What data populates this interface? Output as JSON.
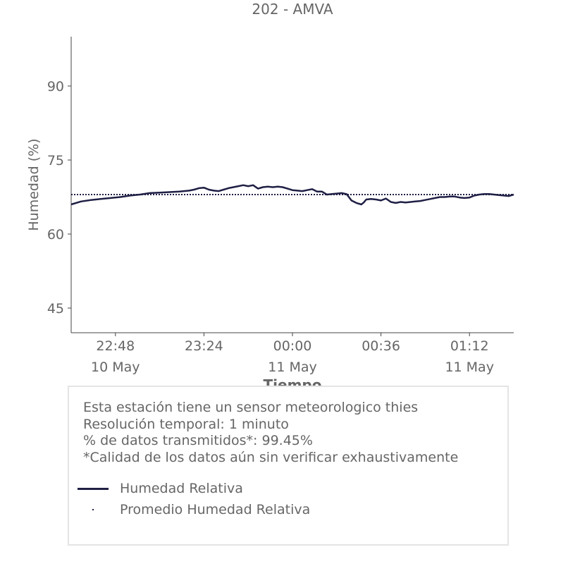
{
  "colors": {
    "series": "#1f1f45",
    "text": "#666666",
    "axis": "#444444",
    "box_border": "#e4e4e4"
  },
  "info": {
    "lines": [
      "Esta estación tiene un sensor meteorologico thies",
      "Resolución temporal: 1 minuto",
      "% de datos transmitidos*: 99.45%",
      "*Calidad de los datos aún sin verificar exhaustivamente"
    ]
  },
  "legend": [
    {
      "label": "Humedad Relativa",
      "style": "line",
      "icon": "solid-line-swatch"
    },
    {
      "label": "Promedio Humedad Relativa",
      "style": "dotted",
      "icon": "dot-swatch"
    }
  ],
  "chart_data": {
    "type": "line",
    "title": "202 - AMVA",
    "xlabel": "Tiempo",
    "ylabel": "Humedad (%)",
    "ylim": [
      40,
      100
    ],
    "xlim": [
      "2024-05-10 22:30",
      "2024-05-11 01:30"
    ],
    "yticks": [
      45,
      60,
      75,
      90
    ],
    "xticks": [
      {
        "at": "22:48",
        "label": "22:48",
        "date": "10 May"
      },
      {
        "at": "23:24",
        "label": "23:24",
        "date": ""
      },
      {
        "at": "00:00",
        "label": "00:00",
        "date": "11 May"
      },
      {
        "at": "00:36",
        "label": "00:36",
        "date": ""
      },
      {
        "at": "01:12",
        "label": "01:12",
        "date": "11 May"
      }
    ],
    "grid": false,
    "legend_position": "bottom",
    "series": [
      {
        "name": "Humedad Relativa",
        "style": "solid",
        "x": [
          "22:30",
          "22:34",
          "22:38",
          "22:42",
          "22:46",
          "22:50",
          "22:54",
          "22:58",
          "23:02",
          "23:06",
          "23:10",
          "23:14",
          "23:18",
          "23:20",
          "23:22",
          "23:24",
          "23:26",
          "23:28",
          "23:30",
          "23:32",
          "23:34",
          "23:36",
          "23:38",
          "23:40",
          "23:42",
          "23:44",
          "23:46",
          "23:48",
          "23:50",
          "23:52",
          "23:54",
          "23:56",
          "23:58",
          "00:00",
          "00:02",
          "00:04",
          "00:06",
          "00:08",
          "00:10",
          "00:12",
          "00:14",
          "00:16",
          "00:18",
          "00:20",
          "00:22",
          "00:24",
          "00:26",
          "00:28",
          "00:29",
          "00:30",
          "00:32",
          "00:34",
          "00:36",
          "00:38",
          "00:40",
          "00:42",
          "00:44",
          "00:46",
          "00:48",
          "00:50",
          "00:52",
          "00:54",
          "00:56",
          "00:58",
          "01:00",
          "01:02",
          "01:04",
          "01:06",
          "01:08",
          "01:10",
          "01:12",
          "01:14",
          "01:16",
          "01:18",
          "01:20",
          "01:22",
          "01:24",
          "01:26",
          "01:28",
          "01:30"
        ],
        "y": [
          66.0,
          66.6,
          66.9,
          67.1,
          67.3,
          67.5,
          67.8,
          68.0,
          68.3,
          68.4,
          68.5,
          68.6,
          68.8,
          69.0,
          69.3,
          69.4,
          69.0,
          68.8,
          68.7,
          69.0,
          69.3,
          69.5,
          69.7,
          69.9,
          69.7,
          69.9,
          69.2,
          69.5,
          69.6,
          69.5,
          69.6,
          69.5,
          69.2,
          68.9,
          68.8,
          68.7,
          68.9,
          69.1,
          68.6,
          68.6,
          68.0,
          68.1,
          68.2,
          68.3,
          68.1,
          66.8,
          66.3,
          66.0,
          66.4,
          67.0,
          67.1,
          67.0,
          66.8,
          67.2,
          66.5,
          66.3,
          66.5,
          66.4,
          66.5,
          66.6,
          66.7,
          66.9,
          67.1,
          67.3,
          67.5,
          67.5,
          67.6,
          67.6,
          67.4,
          67.3,
          67.4,
          67.8,
          68.0,
          68.1,
          68.1,
          68.0,
          67.9,
          67.8,
          67.7,
          68.0
        ]
      },
      {
        "name": "Promedio Humedad Relativa",
        "style": "dotted",
        "x": [
          "22:30",
          "01:30"
        ],
        "y": [
          68.0,
          68.0
        ]
      }
    ]
  }
}
